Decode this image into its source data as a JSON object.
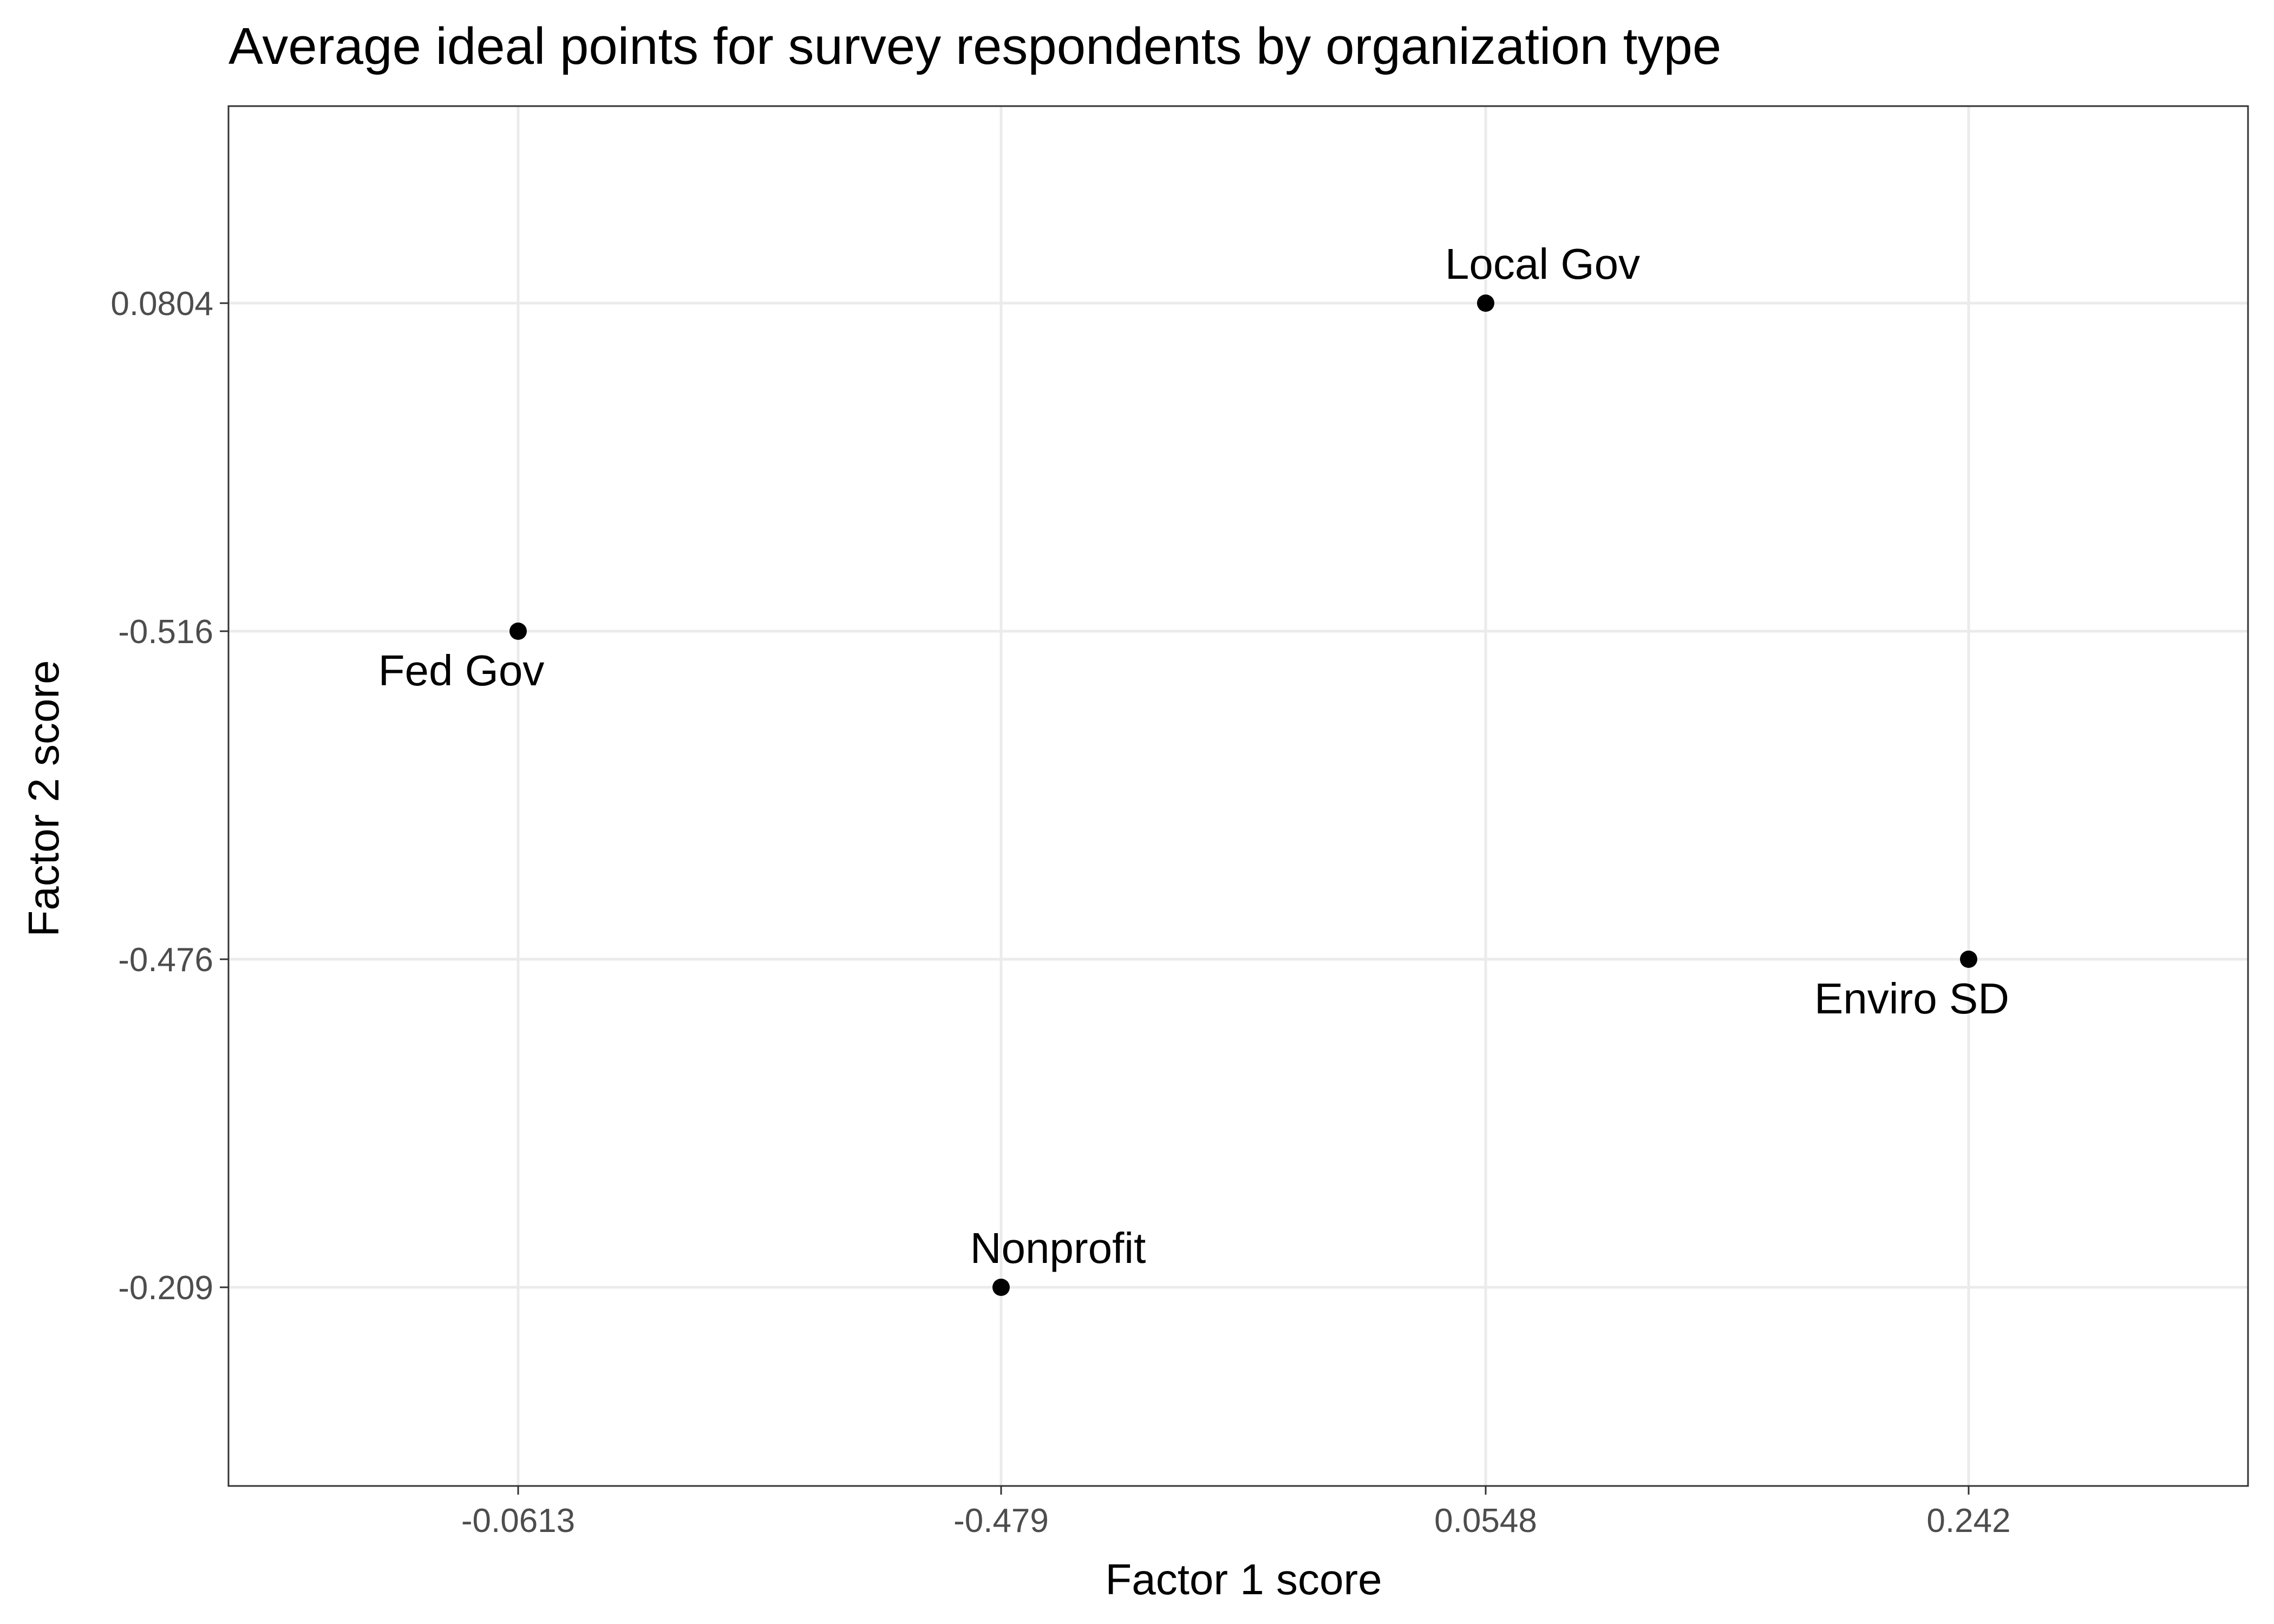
{
  "chart_data": {
    "type": "scatter",
    "title": "Average ideal points for survey respondents by organization type",
    "xlabel": "Factor 1 score",
    "ylabel": "Factor 2 score",
    "x_axis": {
      "scale": "categorical",
      "tick_labels": [
        "-0.0613",
        "-0.479",
        "0.0548",
        "0.242"
      ]
    },
    "y_axis": {
      "scale": "categorical",
      "tick_labels_top_to_bottom": [
        "0.0804",
        "-0.516",
        "-0.476",
        "-0.209"
      ]
    },
    "points": [
      {
        "label": "Fed Gov",
        "x": "-0.0613",
        "y": "-0.516",
        "label_position": "below"
      },
      {
        "label": "Nonprofit",
        "x": "-0.479",
        "y": "-0.209",
        "label_position": "above"
      },
      {
        "label": "Local Gov",
        "x": "0.0548",
        "y": "0.0804",
        "label_position": "above"
      },
      {
        "label": "Enviro SD",
        "x": "0.242",
        "y": "-0.476",
        "label_position": "below"
      }
    ],
    "grid": true,
    "legend": "none",
    "colors": {
      "point": "#000000",
      "grid": "#ebebeb",
      "panel_border": "#333333",
      "tick_label": "#4d4d4d"
    }
  }
}
